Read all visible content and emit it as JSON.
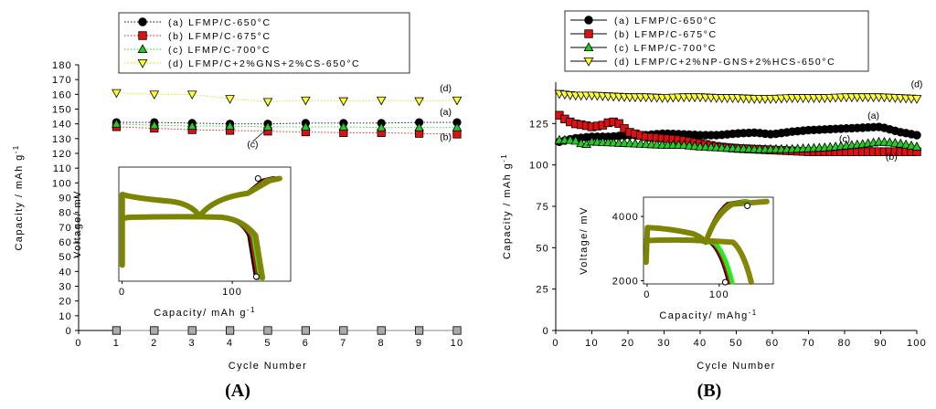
{
  "chart_data": [
    {
      "type": "line",
      "panel_label": "(A)",
      "xlabel": "Cycle Number",
      "ylabel": "Capacity / mAh g",
      "ylabel_superscript": "-1",
      "xlim": [
        0,
        10
      ],
      "ylim": [
        0,
        180
      ],
      "xticks": [
        0,
        1,
        2,
        3,
        4,
        5,
        6,
        7,
        8,
        9,
        10
      ],
      "yticks": [
        0,
        10,
        20,
        30,
        40,
        50,
        60,
        70,
        80,
        90,
        100,
        110,
        120,
        130,
        140,
        150,
        160,
        170,
        180
      ],
      "x": [
        1,
        2,
        3,
        4,
        5,
        6,
        7,
        8,
        9,
        10
      ],
      "series": [
        {
          "name": "(a) LFMP/C-650°C",
          "marker": "circle",
          "color": "#000000",
          "line": "dotted",
          "values": [
            141,
            141,
            140.5,
            140,
            140,
            140.5,
            140.5,
            140.5,
            141,
            141
          ]
        },
        {
          "name": "(b) LFMP/C-675°C",
          "marker": "square",
          "color": "#dd1111",
          "line": "dotted",
          "values": [
            138,
            137,
            136,
            135.5,
            135,
            134.5,
            134,
            134,
            133.5,
            133
          ]
        },
        {
          "name": "(c) LFMP/C-700°C",
          "marker": "triangle-up",
          "color": "#22cc22",
          "line": "dotted",
          "values": [
            140,
            139,
            138.5,
            138.5,
            138,
            138,
            138,
            137.5,
            137.5,
            137.5
          ]
        },
        {
          "name": "(d) LFMP/C+2%GNS+2%CS-650°C",
          "marker": "triangle-down",
          "color": "#ffff33",
          "line": "dotted",
          "values": [
            161,
            160,
            160,
            157,
            155,
            156,
            155.5,
            156,
            155.5,
            156
          ]
        },
        {
          "name": "",
          "marker": "square",
          "color": "#aaaaaa",
          "line": "solid",
          "values": [
            0,
            0,
            0,
            0,
            0,
            0,
            0,
            0,
            0,
            0
          ]
        }
      ],
      "annotations": [
        {
          "text": "(d)",
          "x": 9.7,
          "y": 162
        },
        {
          "text": "(a)",
          "x": 9.7,
          "y": 146
        },
        {
          "text": "(b)",
          "x": 9.7,
          "y": 129
        },
        {
          "text": "(c)",
          "x": 4.6,
          "y": 124
        }
      ],
      "inset": {
        "xlabel": "Capacity/ mAh g",
        "xlabel_superscript": "-1",
        "ylabel": "Voltage/ mV",
        "xticks": [
          0,
          100
        ],
        "xlim": [
          -3,
          153
        ],
        "ylim": [
          3600,
          4500
        ]
      },
      "legend_position": "top-center"
    },
    {
      "type": "line",
      "panel_label": "(B)",
      "xlabel": "Cycle Number",
      "ylabel": "Capacity / mAh g",
      "ylabel_superscript": "-1",
      "xlim": [
        0,
        100
      ],
      "ylim": [
        0,
        150
      ],
      "xticks": [
        0,
        10,
        20,
        30,
        40,
        50,
        60,
        70,
        80,
        90,
        100
      ],
      "yticks": [
        0,
        25,
        50,
        75,
        100,
        125
      ],
      "series": [
        {
          "name": "(a) LFMP/C-650°C",
          "marker": "circle",
          "color": "#000000",
          "x": [
            1,
            5,
            10,
            15,
            20,
            25,
            30,
            35,
            40,
            45,
            50,
            55,
            60,
            65,
            70,
            75,
            80,
            85,
            90,
            95,
            100
          ],
          "values": [
            114,
            116,
            117,
            117,
            118,
            118,
            119,
            118.5,
            118,
            118,
            119,
            119.5,
            118.5,
            120,
            121,
            121.5,
            122,
            122.5,
            123,
            120,
            118
          ]
        },
        {
          "name": "(b) LFMP/C-675°C",
          "marker": "square",
          "color": "#dd1111",
          "x": [
            1,
            3,
            5,
            8,
            10,
            13,
            15,
            17,
            20,
            25,
            30,
            35,
            40,
            45,
            50,
            55,
            60,
            65,
            70,
            75,
            80,
            85,
            90,
            95,
            100
          ],
          "values": [
            130,
            127,
            125,
            124,
            123,
            124,
            126,
            126,
            120,
            117,
            116,
            115,
            113,
            111,
            110,
            109.5,
            109,
            108.5,
            108,
            108,
            108,
            108,
            108,
            108,
            108
          ]
        },
        {
          "name": "(c) LFMP/C-700°C",
          "marker": "triangle-up",
          "color": "#22cc22",
          "x": [
            1,
            5,
            8,
            10,
            15,
            20,
            25,
            30,
            35,
            40,
            45,
            50,
            55,
            60,
            65,
            70,
            75,
            80,
            85,
            90,
            95,
            100
          ],
          "values": [
            115,
            115,
            112,
            114,
            113.5,
            113,
            112.5,
            112,
            112,
            111,
            110.5,
            110,
            109.5,
            109.5,
            109.5,
            110,
            110.5,
            111.5,
            112.5,
            114,
            113,
            111
          ]
        },
        {
          "name": "(d) LFMP/C+2%NP-GNS+2%HCS-650°C",
          "marker": "triangle-down",
          "color": "#ffff33",
          "x": [
            1,
            5,
            10,
            15,
            20,
            25,
            30,
            35,
            40,
            45,
            50,
            55,
            60,
            65,
            70,
            75,
            80,
            85,
            90,
            95,
            100
          ],
          "values": [
            143,
            142,
            142,
            141.5,
            141,
            141,
            140.5,
            141,
            141,
            140.5,
            140.5,
            140,
            140,
            140.5,
            140.5,
            140.5,
            141,
            141,
            141,
            140.5,
            140
          ]
        }
      ],
      "annotations": [
        {
          "text": "(d)",
          "x": 100,
          "y": 147
        },
        {
          "text": "(a)",
          "x": 88,
          "y": 128
        },
        {
          "text": "(c)",
          "x": 80,
          "y": 114
        },
        {
          "text": "(b)",
          "x": 93,
          "y": 103
        }
      ],
      "inset": {
        "xlabel": "Capacity/ mAhg",
        "xlabel_superscript": "-1",
        "ylabel": "Voltage/ mV",
        "xticks": [
          0,
          100
        ],
        "yticks": [
          2000,
          4000
        ],
        "xlim": [
          -5,
          175
        ],
        "ylim": [
          1900,
          4600
        ]
      },
      "legend_position": "top-center"
    }
  ]
}
